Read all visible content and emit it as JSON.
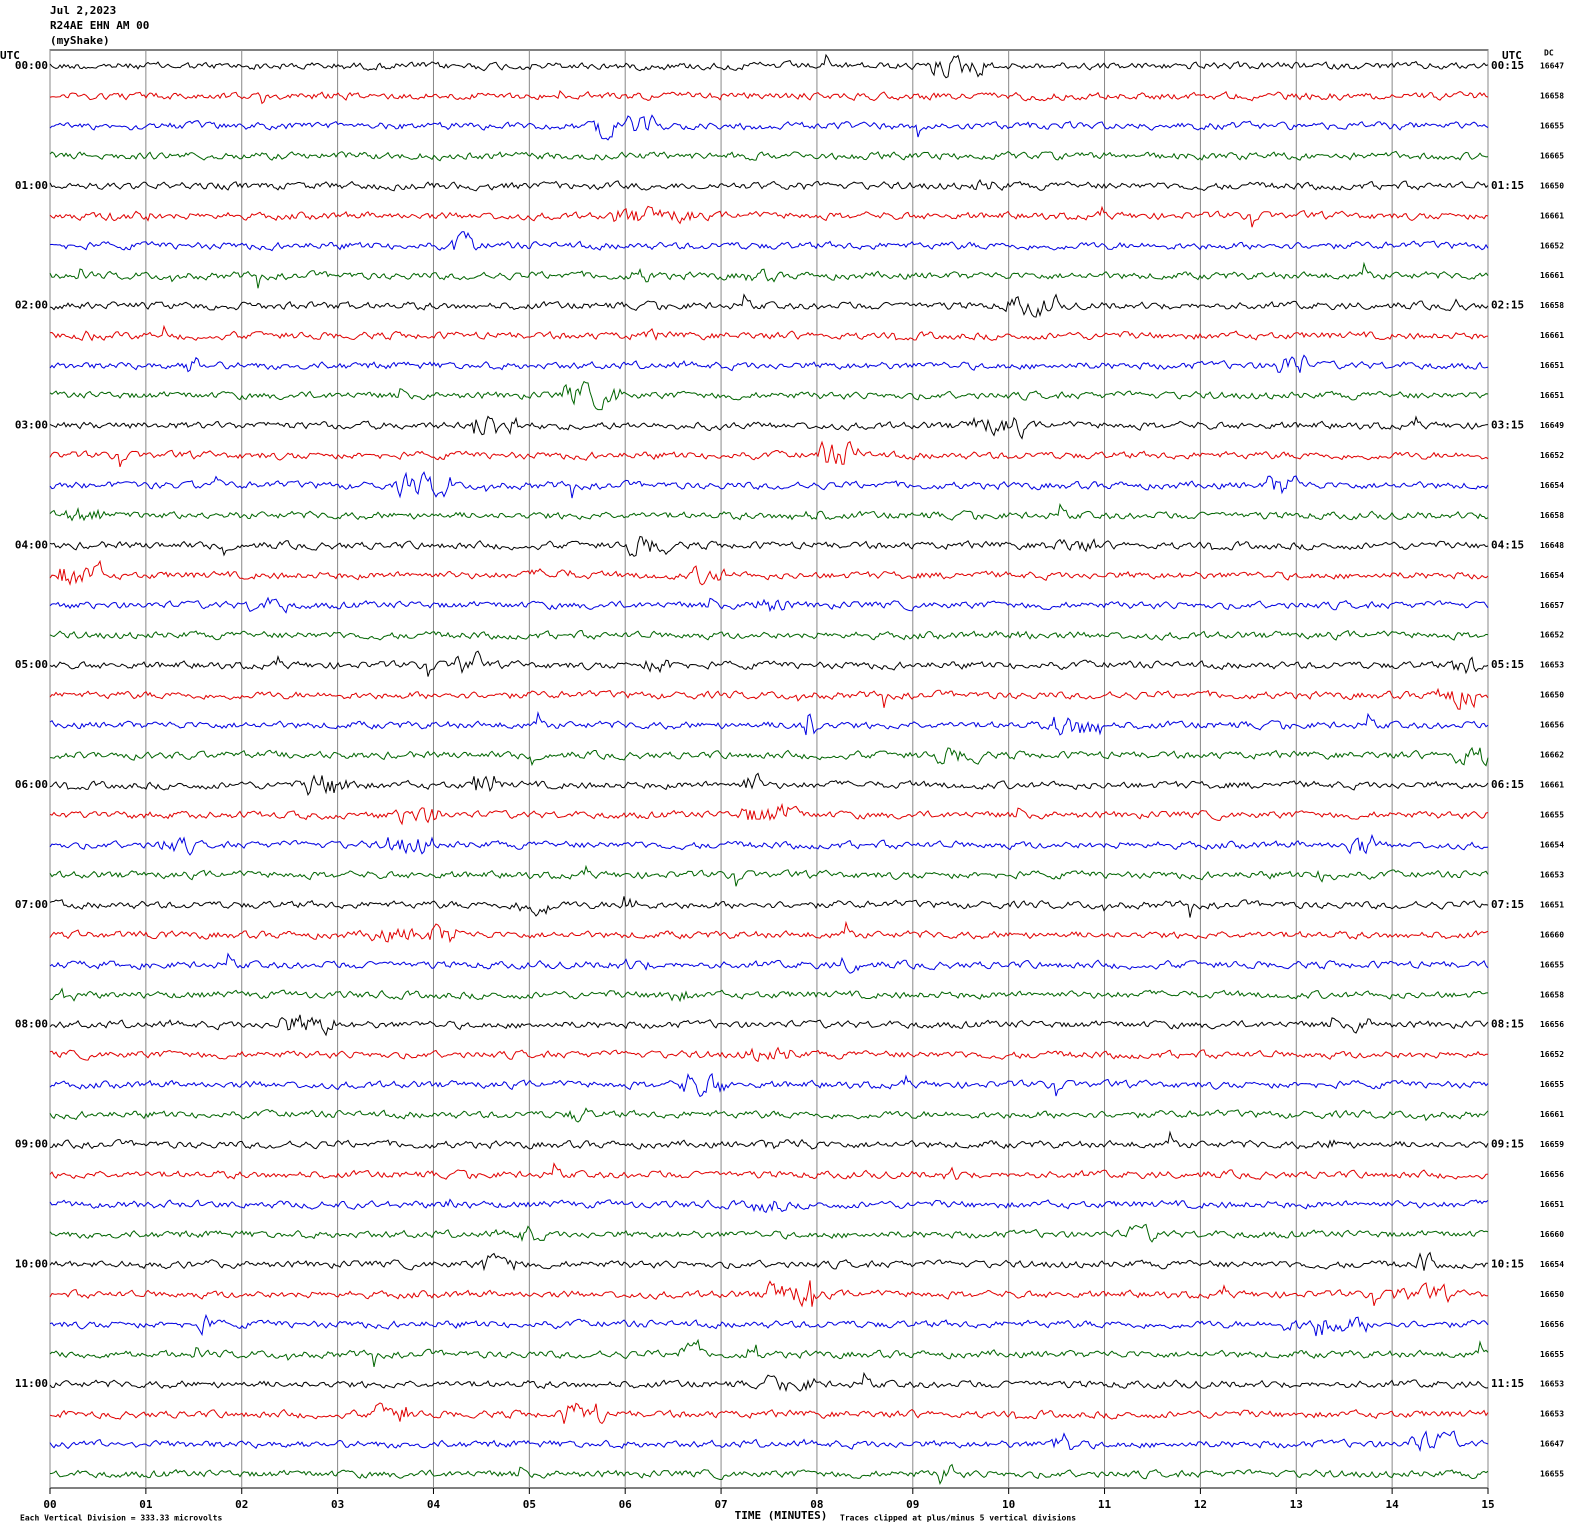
{
  "chart_data": {
    "type": "seismogram",
    "title": [
      "Jul 2,2023",
      "R24AE EHN AM 00",
      "(myShake)"
    ],
    "left_axis_label": "UTC",
    "right_axis_label": "UTC",
    "dc_label": "DC",
    "xlabel": "TIME (MINUTES)",
    "scale_note": "Each Vertical Division =  333.33 microvolts",
    "clip_note": "Traces clipped at plus/minus 5 vertical divisions",
    "xlim": [
      0,
      15
    ],
    "xticks": [
      {
        "value": 0,
        "label": "00"
      },
      {
        "value": 1,
        "label": "01"
      },
      {
        "value": 2,
        "label": "02"
      },
      {
        "value": 3,
        "label": "03"
      },
      {
        "value": 4,
        "label": "04"
      },
      {
        "value": 5,
        "label": "05"
      },
      {
        "value": 6,
        "label": "06"
      },
      {
        "value": 7,
        "label": "07"
      },
      {
        "value": 8,
        "label": "08"
      },
      {
        "value": 9,
        "label": "09"
      },
      {
        "value": 10,
        "label": "10"
      },
      {
        "value": 11,
        "label": "11"
      },
      {
        "value": 12,
        "label": "12"
      },
      {
        "value": 13,
        "label": "13"
      },
      {
        "value": 14,
        "label": "14"
      },
      {
        "value": 15,
        "label": "15"
      }
    ],
    "left_labels": [
      "00:00",
      "01:00",
      "02:00",
      "03:00",
      "04:00",
      "05:00",
      "06:00",
      "07:00",
      "08:00",
      "09:00",
      "10:00",
      "11:00"
    ],
    "right_labels": [
      "00:15",
      "01:15",
      "02:15",
      "03:15",
      "04:15",
      "05:15",
      "06:15",
      "07:15",
      "08:15",
      "09:15",
      "10:15",
      "11:15"
    ],
    "dc": [
      16647,
      16658,
      16655,
      16665,
      16650,
      16661,
      16652,
      16661,
      16658,
      16661,
      16651,
      16651,
      16649,
      16652,
      16654,
      16658,
      16648,
      16654,
      16657,
      16652,
      16653,
      16650,
      16656,
      16662,
      16661,
      16655,
      16654,
      16653,
      16651,
      16660,
      16655,
      16658,
      16656,
      16652,
      16655,
      16661,
      16659,
      16656,
      16651,
      16660,
      16654,
      16650,
      16656,
      16655,
      16653,
      16653,
      16647,
      16655
    ],
    "colors": [
      "#000000",
      "#e00000",
      "#0000e0",
      "#006400"
    ]
  }
}
